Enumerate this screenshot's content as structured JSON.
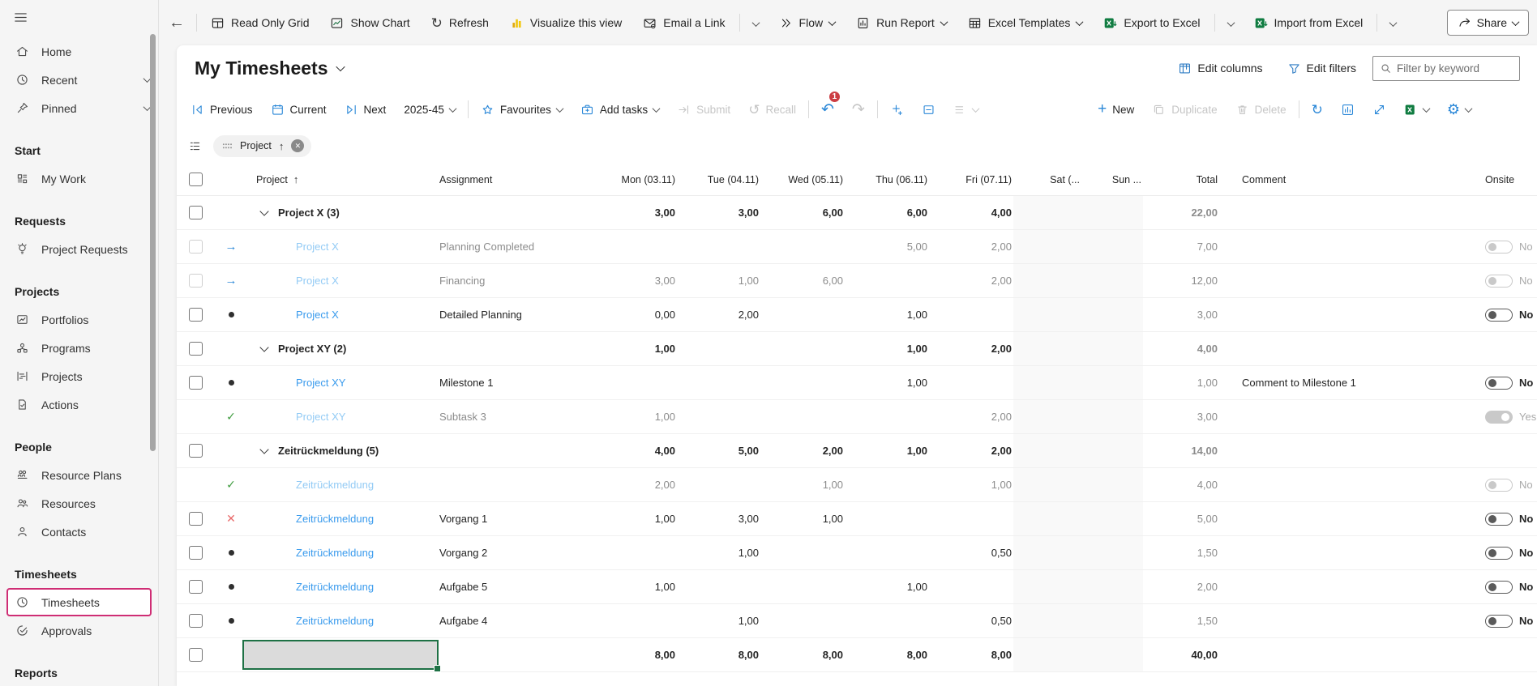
{
  "colors": {
    "accent_blue": "#2b88d8",
    "link_blue": "#3a9bed",
    "muted_link_blue": "#93cbf5",
    "excel_green": "#107c41",
    "powerbi_yellow": "#f2c811",
    "highlight_magenta": "#cf2d74",
    "badge_red": "#cc3e44",
    "selection_green": "#1e7145",
    "check_green": "#3f9c3f",
    "reject_red": "#e96a6a"
  },
  "glyphs": {
    "back": "←",
    "refresh": "↻",
    "undo": "↶",
    "redo": "↷",
    "recall": "↺",
    "gear": "⚙",
    "sort_asc": "↑",
    "status_arrow": "→",
    "check": "✓",
    "reject_x": "✕",
    "chip_close": "✕",
    "new_plus": "+"
  },
  "top_toolbar": {
    "read_only_grid": "Read Only Grid",
    "show_chart": "Show Chart",
    "refresh": "Refresh",
    "visualize": "Visualize this view",
    "email_link": "Email a Link",
    "flow": "Flow",
    "run_report": "Run Report",
    "excel_templates": "Excel Templates",
    "export_excel": "Export to Excel",
    "import_excel": "Import from Excel",
    "share": "Share"
  },
  "sidebar": {
    "top_items": [
      {
        "label": "Home"
      },
      {
        "label": "Recent"
      },
      {
        "label": "Pinned"
      }
    ],
    "sections": [
      {
        "title": "Start",
        "items": [
          {
            "label": "My Work"
          }
        ]
      },
      {
        "title": "Requests",
        "items": [
          {
            "label": "Project Requests"
          }
        ]
      },
      {
        "title": "Projects",
        "items": [
          {
            "label": "Portfolios"
          },
          {
            "label": "Programs"
          },
          {
            "label": "Projects"
          },
          {
            "label": "Actions"
          }
        ]
      },
      {
        "title": "People",
        "items": [
          {
            "label": "Resource Plans"
          },
          {
            "label": "Resources"
          },
          {
            "label": "Contacts"
          }
        ]
      },
      {
        "title": "Timesheets",
        "items": [
          {
            "label": "Timesheets",
            "active": true
          },
          {
            "label": "Approvals"
          }
        ]
      },
      {
        "title": "Reports",
        "items": []
      }
    ]
  },
  "page": {
    "title": "My Timesheets",
    "edit_columns": "Edit columns",
    "edit_filters": "Edit filters",
    "filter_placeholder": "Filter by keyword"
  },
  "grid_toolbar": {
    "previous": "Previous",
    "current": "Current",
    "next": "Next",
    "period": "2025-45",
    "favourites": "Favourites",
    "add_tasks": "Add tasks",
    "submit": "Submit",
    "recall": "Recall",
    "undo_badge": "1",
    "new": "New",
    "duplicate": "Duplicate",
    "delete": "Delete"
  },
  "filter_chip": {
    "label": "Project"
  },
  "table": {
    "columns": {
      "project": "Project",
      "assignment": "Assignment",
      "mon": "Mon (03.11)",
      "tue": "Tue (04.11)",
      "wed": "Wed (05.11)",
      "thu": "Thu (06.11)",
      "fri": "Fri (07.11)",
      "sat": "Sat (...",
      "sun": "Sun ...",
      "total": "Total",
      "comment": "Comment",
      "onsite": "Onsite"
    },
    "rows": [
      {
        "kind": "group",
        "checkbox": true,
        "project": "Project X (3)",
        "mon": "3,00",
        "tue": "3,00",
        "wed": "6,00",
        "thu": "6,00",
        "fri": "4,00",
        "total": "22,00"
      },
      {
        "kind": "task",
        "muted": true,
        "checkbox": true,
        "status": "arrow",
        "project": "Project X",
        "assignment": "Planning Completed",
        "thu": "5,00",
        "fri": "2,00",
        "total": "7,00",
        "onsite": {
          "label": "No",
          "on": false,
          "disabled": true
        }
      },
      {
        "kind": "task",
        "muted": true,
        "checkbox": true,
        "status": "arrow",
        "project": "Project X",
        "assignment": "Financing",
        "mon": "3,00",
        "tue": "1,00",
        "wed": "6,00",
        "fri": "2,00",
        "total": "12,00",
        "onsite": {
          "label": "No",
          "on": false,
          "disabled": true
        }
      },
      {
        "kind": "task",
        "checkbox": true,
        "status": "dot",
        "project": "Project X",
        "assignment": "Detailed Planning",
        "mon": "0,00",
        "tue": "2,00",
        "thu": "1,00",
        "total": "3,00",
        "onsite": {
          "label": "No",
          "on": false,
          "disabled": false
        }
      },
      {
        "kind": "group",
        "checkbox": true,
        "project": "Project XY (2)",
        "mon": "1,00",
        "thu": "1,00",
        "fri": "2,00",
        "total": "4,00"
      },
      {
        "kind": "task",
        "checkb": false,
        "checkbox": true,
        "status": "dot",
        "project": "Project XY",
        "assignment": "Milestone 1",
        "thu": "1,00",
        "total": "1,00",
        "comment": "Comment to Milestone 1",
        "onsite": {
          "label": "No",
          "on": false,
          "disabled": false
        }
      },
      {
        "kind": "task",
        "muted": true,
        "checkbox": false,
        "status": "check",
        "project": "Project XY",
        "assignment": "Subtask 3",
        "mon": "1,00",
        "fri": "2,00",
        "total": "3,00",
        "onsite": {
          "label": "Yes",
          "on": true,
          "disabled": true
        }
      },
      {
        "kind": "group",
        "checkbox": true,
        "project": "Zeitrückmeldung (5)",
        "mon": "4,00",
        "tue": "5,00",
        "wed": "2,00",
        "thu": "1,00",
        "fri": "2,00",
        "total": "14,00"
      },
      {
        "kind": "task",
        "muted": true,
        "checkbox": false,
        "status": "check",
        "project": "Zeitrückmeldung",
        "assignment": "",
        "mon": "2,00",
        "wed": "1,00",
        "fri": "1,00",
        "total": "4,00",
        "onsite": {
          "label": "No",
          "on": false,
          "disabled": true
        }
      },
      {
        "kind": "task",
        "checkbox": true,
        "status": "x",
        "project": "Zeitrückmeldung",
        "assignment": "Vorgang 1",
        "mon": "1,00",
        "tue": "3,00",
        "wed": "1,00",
        "total": "5,00",
        "onsite": {
          "label": "No",
          "on": false,
          "disabled": false
        }
      },
      {
        "kind": "task",
        "checkbox": true,
        "status": "dot",
        "project": "Zeitrückmeldung",
        "assignment": "Vorgang 2",
        "tue": "1,00",
        "fri": "0,50",
        "total": "1,50",
        "onsite": {
          "label": "No",
          "on": false,
          "disabled": false
        }
      },
      {
        "kind": "task",
        "checkbox": true,
        "status": "dot",
        "project": "Zeitrückmeldung",
        "assignment": "Aufgabe 5",
        "mon": "1,00",
        "thu": "1,00",
        "total": "2,00",
        "onsite": {
          "label": "No",
          "on": false,
          "disabled": false
        }
      },
      {
        "kind": "task",
        "checkbox": true,
        "status": "dot",
        "project": "Zeitrückmeldung",
        "assignment": "Aufgabe 4",
        "tue": "1,00",
        "fri": "0,50",
        "total": "1,50",
        "onsite": {
          "label": "No",
          "on": false,
          "disabled": false
        }
      },
      {
        "kind": "total",
        "checkbox": true,
        "selected_cell": true,
        "mon": "8,00",
        "tue": "8,00",
        "wed": "8,00",
        "thu": "8,00",
        "fri": "8,00",
        "total": "40,00"
      }
    ]
  }
}
